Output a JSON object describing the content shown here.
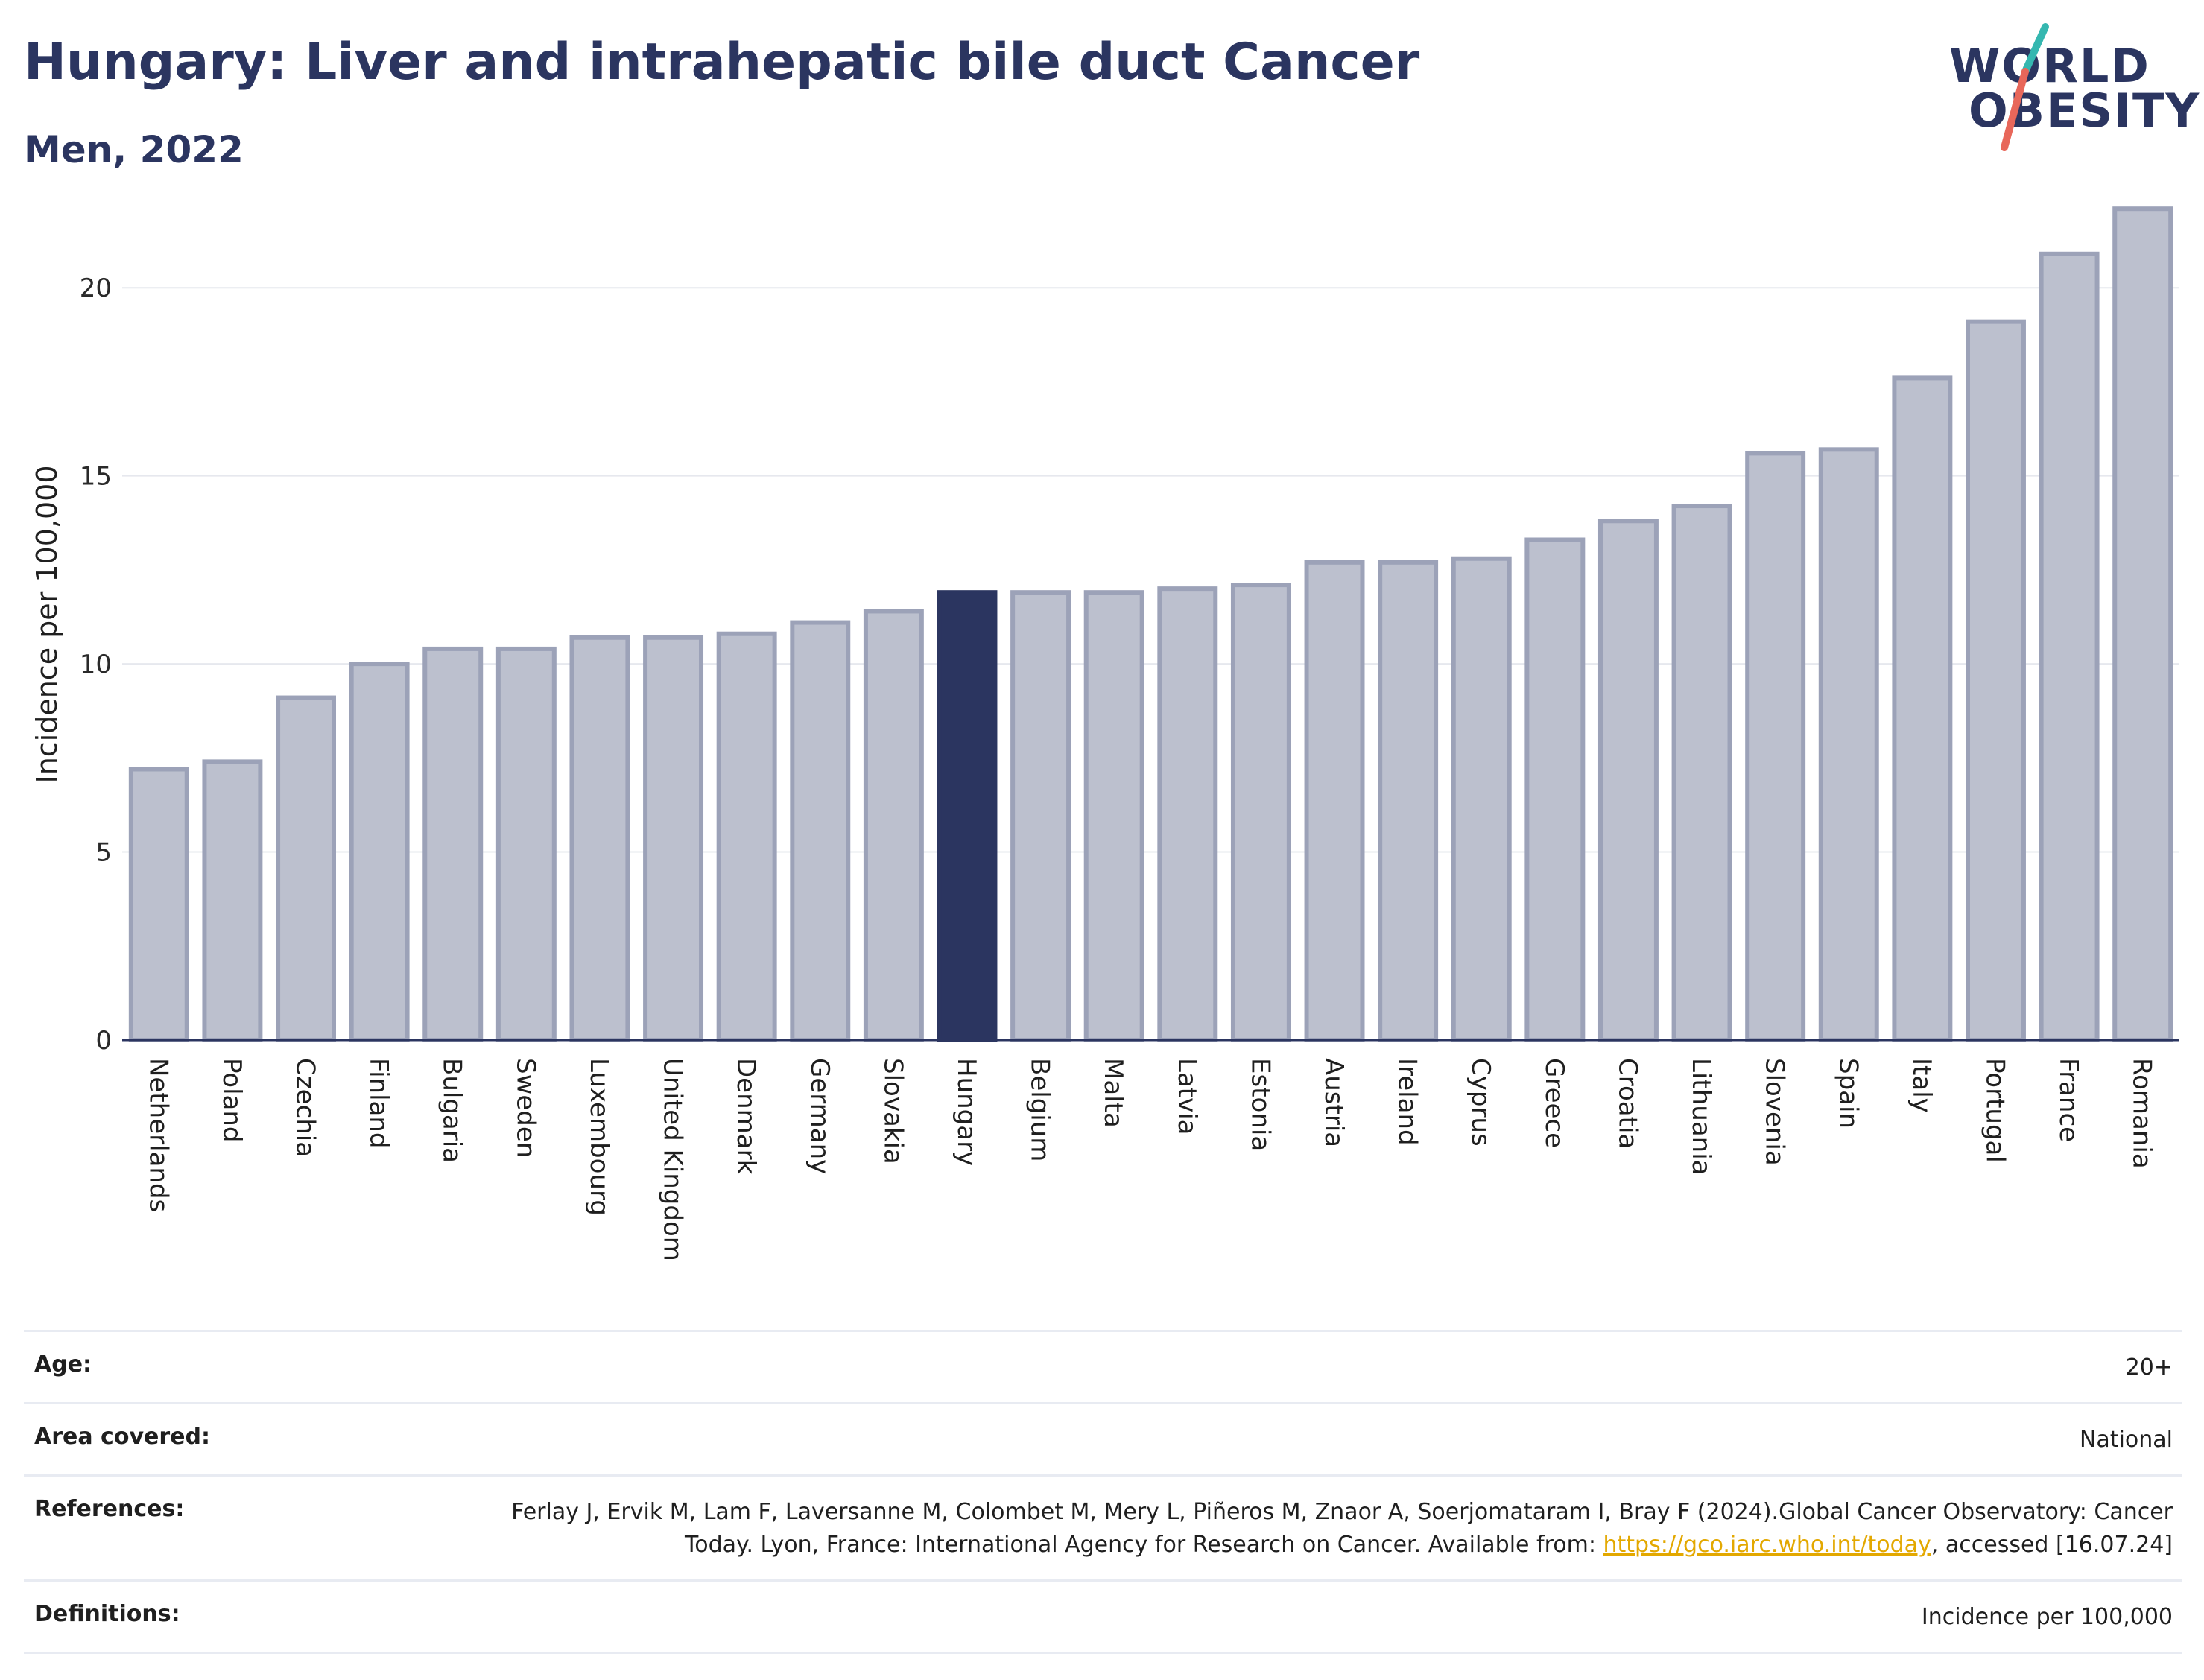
{
  "header": {
    "title": "Hungary: Liver and intrahepatic bile duct Cancer",
    "subtitle": "Men, 2022"
  },
  "logo": {
    "line1": "WORLD",
    "line2": "OBESITY"
  },
  "colors": {
    "bar": "#bcc0ce",
    "bar_outline": "#9ca2b8",
    "highlight": "#2b3560",
    "title": "#2b3560",
    "grid": "#e6e8ee",
    "link": "#e3a800",
    "logo_slash_teal": "#35b7b0",
    "logo_slash_coral": "#e8675a"
  },
  "chart_data": {
    "type": "bar",
    "title": "Hungary: Liver and intrahepatic bile duct Cancer",
    "subtitle": "Men, 2022",
    "xlabel": "",
    "ylabel": "Incidence per 100,000",
    "ylim": [
      0,
      22.5
    ],
    "yticks": [
      0,
      5,
      10,
      15,
      20
    ],
    "grid": true,
    "highlight": "Hungary",
    "categories": [
      "Netherlands",
      "Poland",
      "Czechia",
      "Finland",
      "Bulgaria",
      "Sweden",
      "Luxembourg",
      "United Kingdom",
      "Denmark",
      "Germany",
      "Slovakia",
      "Hungary",
      "Belgium",
      "Malta",
      "Latvia",
      "Estonia",
      "Austria",
      "Ireland",
      "Cyprus",
      "Greece",
      "Croatia",
      "Lithuania",
      "Slovenia",
      "Spain",
      "Italy",
      "Portugal",
      "France",
      "Romania"
    ],
    "values": [
      7.2,
      7.4,
      9.1,
      10.0,
      10.4,
      10.4,
      10.7,
      10.7,
      10.8,
      11.1,
      11.4,
      11.9,
      11.9,
      11.9,
      12.0,
      12.1,
      12.7,
      12.7,
      12.8,
      13.3,
      13.8,
      14.2,
      15.6,
      15.7,
      17.6,
      19.1,
      20.9,
      22.1
    ]
  },
  "meta": {
    "age_label": "Age:",
    "age_value": "20+",
    "area_label": "Area covered:",
    "area_value": "National",
    "references_label": "References:",
    "references_text": "Ferlay J, Ervik M, Lam F, Laversanne M, Colombet M, Mery L, Piñeros M, Znaor A, Soerjomataram I, Bray F (2024).Global Cancer Observatory: Cancer Today. Lyon, France: International Agency for Research on Cancer. Available from: ",
    "references_link": "https://gco.iarc.who.int/today",
    "references_tail": ", accessed [16.07.24]",
    "definitions_label": "Definitions:",
    "definitions_value": "Incidence per 100,000"
  }
}
